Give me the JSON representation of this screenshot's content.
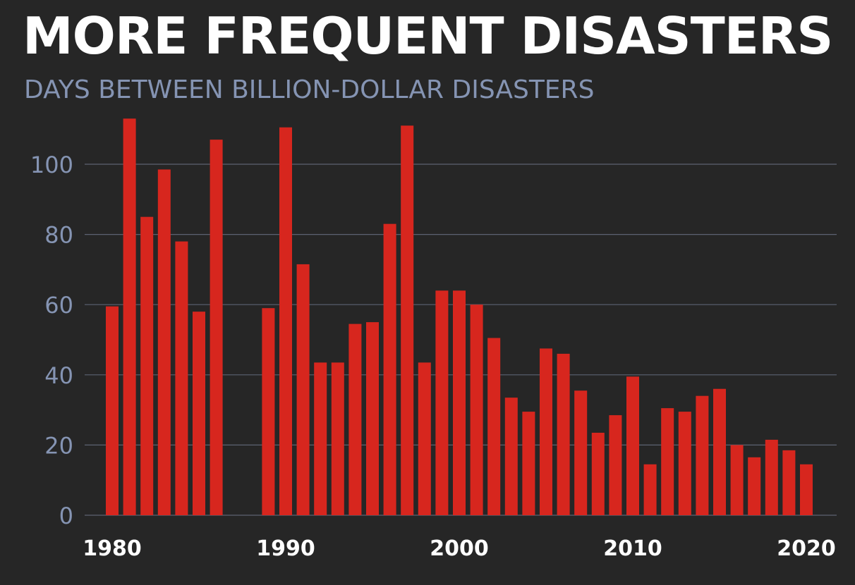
{
  "title": "MORE FREQUENT DISASTERS",
  "subtitle": "DAYS BETWEEN BILLION-DOLLAR DISASTERS",
  "colors": {
    "background": "#262626",
    "bar": "#d7261e",
    "grid": "#5c6272",
    "axis_text": "#8594b3",
    "year_text": "#ffffff"
  },
  "chart_data": {
    "type": "bar",
    "title": "MORE FREQUENT DISASTERS",
    "subtitle": "DAYS BETWEEN BILLION-DOLLAR DISASTERS",
    "xlabel": "",
    "ylabel": "",
    "ylim": [
      0,
      110
    ],
    "yticks": [
      0,
      20,
      40,
      60,
      80,
      100
    ],
    "xticks": [
      1980,
      1990,
      2000,
      2010,
      2020
    ],
    "grid": true,
    "categories": [
      1980,
      1981,
      1982,
      1983,
      1984,
      1985,
      1986,
      1987,
      1988,
      1989,
      1990,
      1991,
      1992,
      1993,
      1994,
      1995,
      1996,
      1997,
      1998,
      1999,
      2000,
      2001,
      2002,
      2003,
      2004,
      2005,
      2006,
      2007,
      2008,
      2009,
      2010,
      2011,
      2012,
      2013,
      2014,
      2015,
      2016,
      2017,
      2018,
      2019,
      2020
    ],
    "values": [
      59.5,
      113,
      85,
      98.5,
      78,
      58,
      107,
      null,
      null,
      59,
      110.5,
      71.5,
      43.5,
      43.5,
      54.5,
      55,
      83,
      111,
      43.5,
      64,
      64,
      60,
      50.5,
      33.5,
      29.5,
      47.5,
      46,
      35.5,
      23.5,
      28.5,
      39.5,
      14.5,
      30.5,
      29.5,
      34,
      36,
      20,
      16.5,
      21.5,
      18.5,
      14.5
    ]
  }
}
